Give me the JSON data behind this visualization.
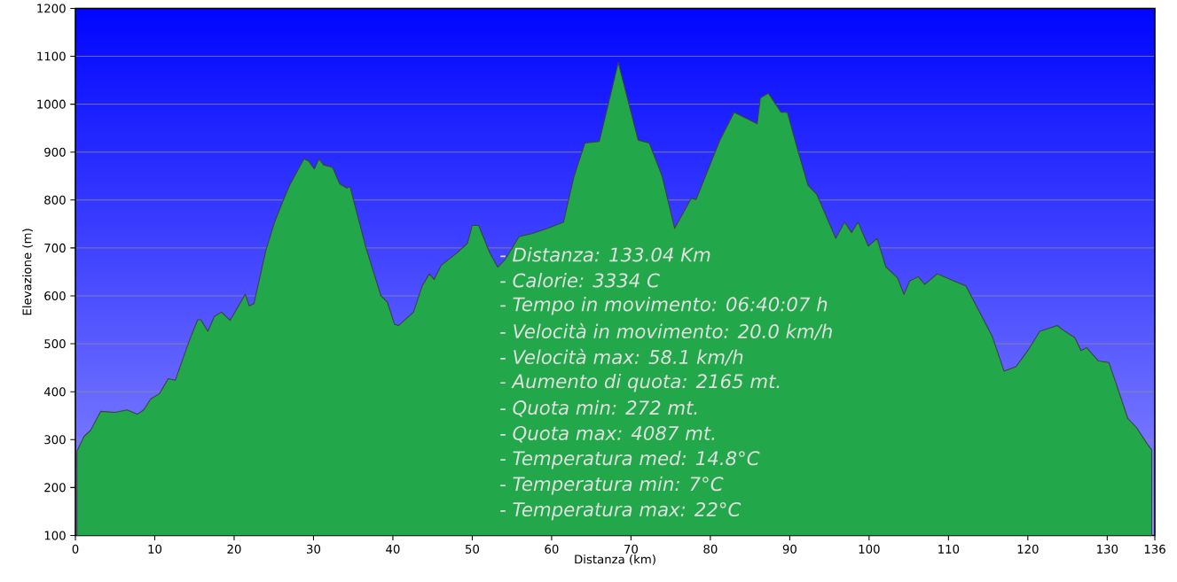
{
  "chart_data": {
    "type": "area",
    "xlabel": "Distanza  (km)",
    "ylabel": "Elevazione (m)",
    "x": [
      0.2,
      1.1,
      1.9,
      3.2,
      5.0,
      6.5,
      7.8,
      8.6,
      9.5,
      10.6,
      11.7,
      12.6,
      14.3,
      15.4,
      15.8,
      16.7,
      17.5,
      18.4,
      19.5,
      21.4,
      21.9,
      22.5,
      24.0,
      25.1,
      26.2,
      27.0,
      28.8,
      29.4,
      30.1,
      30.7,
      31.3,
      32.4,
      33.3,
      34.2,
      34.6,
      36.6,
      38.5,
      39.3,
      40.2,
      40.7,
      42.6,
      43.7,
      44.6,
      45.2,
      46.1,
      48.1,
      49.4,
      50.0,
      50.8,
      52.2,
      53.2,
      54.2,
      55.9,
      57.5,
      59.5,
      61.5,
      62.8,
      64.2,
      66.0,
      68.4,
      70.9,
      72.3,
      73.9,
      75.5,
      77.6,
      78.2,
      81.2,
      83.0,
      85.9,
      86.3,
      87.3,
      88.9,
      89.7,
      91.0,
      92.3,
      93.4,
      95.8,
      96.9,
      97.8,
      98.6,
      99.9,
      101.0,
      102.1,
      103.6,
      104.4,
      105.1,
      106.2,
      107.0,
      108.6,
      110.7,
      112.2,
      115.5,
      117.0,
      118.5,
      120.0,
      121.5,
      123.7,
      124.4,
      125.9,
      126.7,
      127.4,
      128.9,
      130.2,
      131.1,
      132.6,
      133.7,
      135.0,
      135.6
    ],
    "series": [
      {
        "color": "#22a84a",
        "values": [
          276,
          307,
          319,
          359,
          357,
          362,
          353,
          362,
          385,
          396,
          427,
          424,
          504,
          550,
          550,
          526,
          557,
          566,
          549,
          603,
          579,
          584,
          695,
          754,
          800,
          831,
          886,
          881,
          865,
          886,
          873,
          868,
          834,
          825,
          828,
          701,
          600,
          587,
          541,
          538,
          566,
          621,
          646,
          634,
          664,
          690,
          710,
          747,
          747,
          690,
          660,
          677,
          724,
          730,
          741,
          754,
          848,
          919,
          922,
          1087,
          925,
          919,
          851,
          741,
          804,
          801,
          925,
          983,
          959,
          1013,
          1023,
          983,
          983,
          905,
          831,
          812,
          720,
          754,
          732,
          754,
          704,
          720,
          661,
          637,
          603,
          631,
          640,
          624,
          646,
          631,
          621,
          516,
          443,
          452,
          486,
          526,
          538,
          529,
          513,
          486,
          492,
          464,
          461,
          418,
          344,
          325,
          292,
          279
        ]
      }
    ],
    "xlim": [
      0,
      136
    ],
    "ylim": [
      100,
      1200
    ],
    "xticks": [
      0,
      10,
      20,
      30,
      40,
      50,
      60,
      70,
      80,
      90,
      100,
      110,
      120,
      130,
      136
    ],
    "yticks": [
      100,
      200,
      300,
      400,
      500,
      600,
      700,
      800,
      900,
      1000,
      1100,
      1200
    ],
    "grid": "y",
    "annotations": [
      "- Distanza: 133.04 Km",
      "- Calorie: 3334 C",
      "- Tempo in movimento: 06:40:07 h",
      "- Velocità in movimento: 20.0 km/h",
      "- Velocità max: 58.1 km/h",
      "- Aumento di quota: 2165 mt.",
      "- Quota min: 272 mt.",
      "- Quota max: 4087 mt.",
      "- Temperatura med: 14.8°C",
      "- Temperatura min: 7°C",
      "- Temperatura max: 22°C"
    ]
  }
}
